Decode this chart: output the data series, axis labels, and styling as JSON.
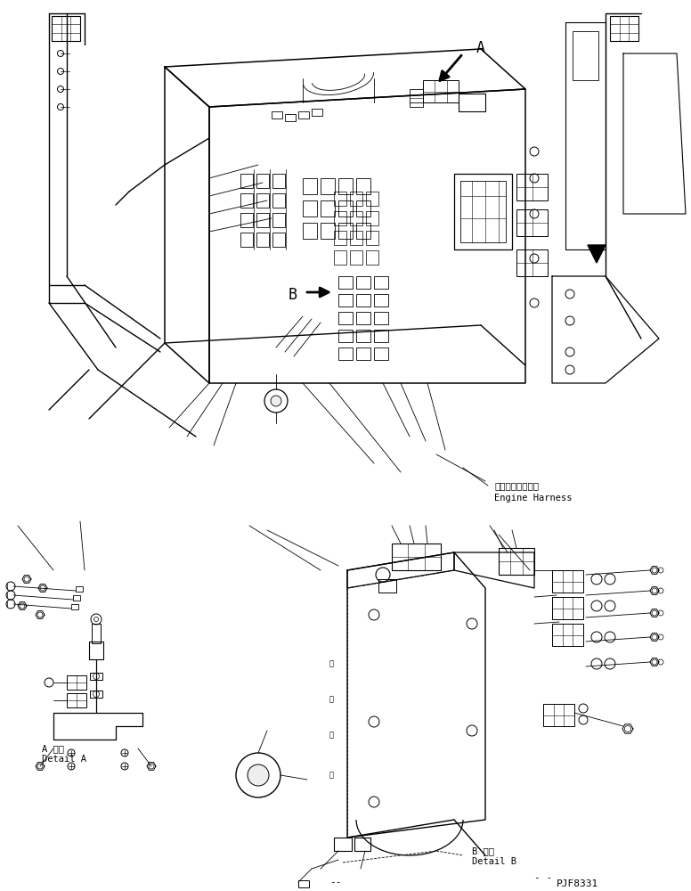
{
  "title": "PJF8331",
  "label_A_jp": "A 詳細",
  "label_A_en": "Detail A",
  "label_B_jp": "B 詳細",
  "label_B_en": "Detail B",
  "engine_harness_jp": "エンジンハーネス",
  "engine_harness_en": "Engine Harness",
  "bg_color": "#ffffff",
  "line_color": "#000000",
  "arrow_color": "#000000",
  "font_mono": "monospace"
}
